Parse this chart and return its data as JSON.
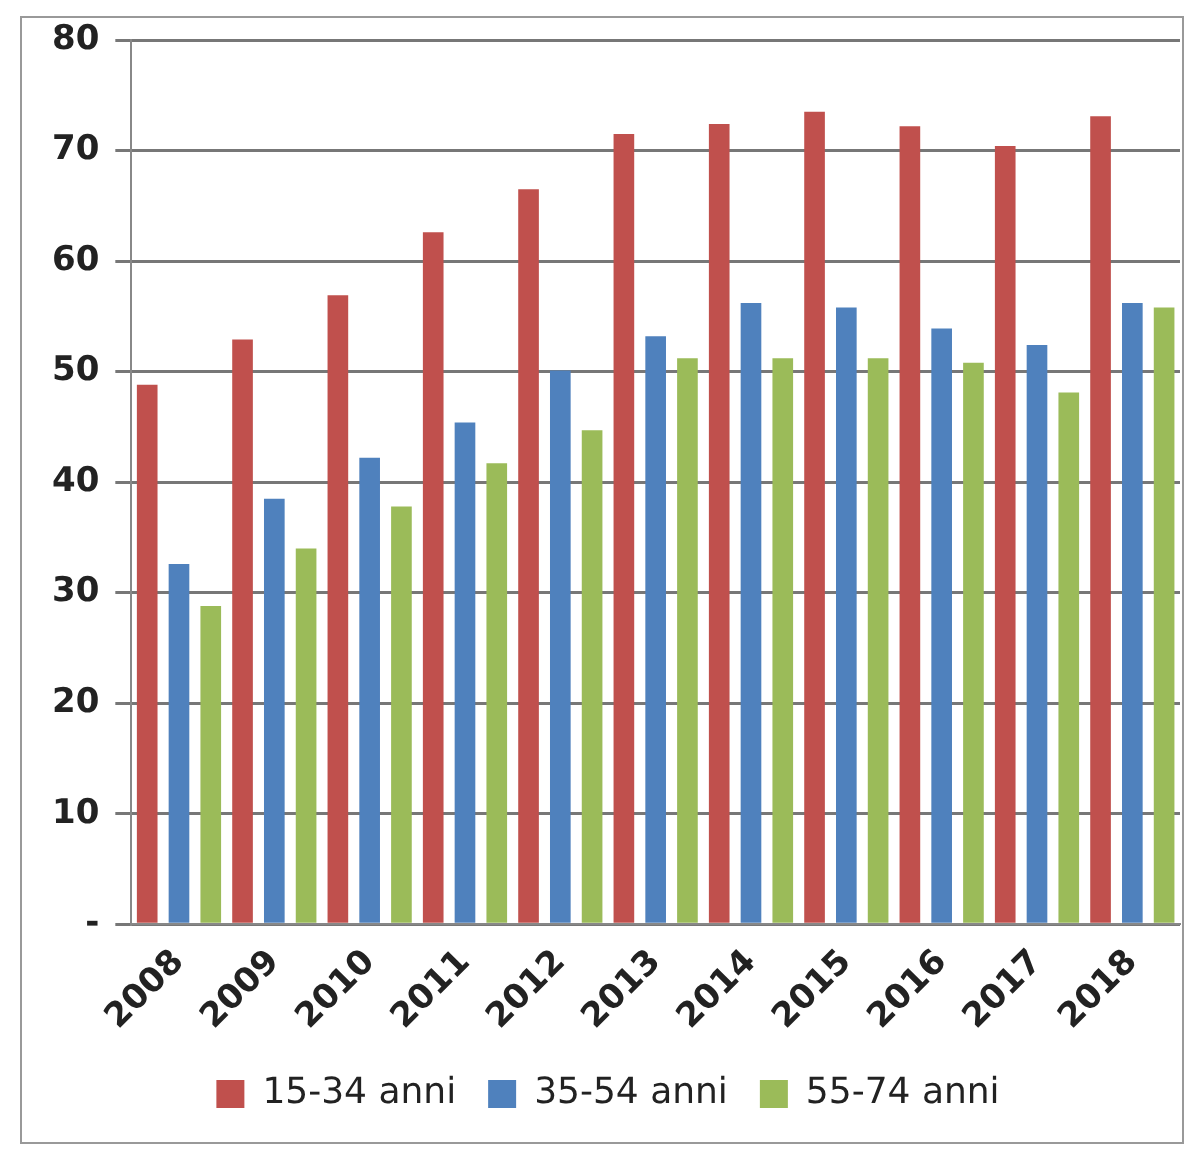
{
  "chart_data": {
    "type": "bar",
    "categories": [
      "2008",
      "2009",
      "2010",
      "2011",
      "2012",
      "2013",
      "2014",
      "2015",
      "2016",
      "2017",
      "2018"
    ],
    "series": [
      {
        "name": "15-34 anni",
        "color": "#c0504d",
        "values": [
          48.8,
          52.9,
          56.9,
          62.6,
          66.5,
          71.5,
          72.4,
          73.5,
          72.2,
          70.4,
          73.1
        ]
      },
      {
        "name": "35-54 anni",
        "color": "#4f81bd",
        "values": [
          32.6,
          38.5,
          42.2,
          45.4,
          50.1,
          53.2,
          56.2,
          55.8,
          53.9,
          52.4,
          56.2
        ]
      },
      {
        "name": "55-74 anni",
        "color": "#9bbb59",
        "values": [
          28.8,
          34.0,
          37.8,
          41.7,
          44.7,
          51.2,
          51.2,
          51.2,
          50.8,
          48.1,
          55.8
        ]
      }
    ],
    "ylim": [
      0,
      80
    ],
    "yticks": [
      {
        "value": 0,
        "label": "-"
      },
      10,
      20,
      30,
      40,
      50,
      60,
      70,
      80
    ],
    "grid": "y",
    "legend": "bottom"
  }
}
